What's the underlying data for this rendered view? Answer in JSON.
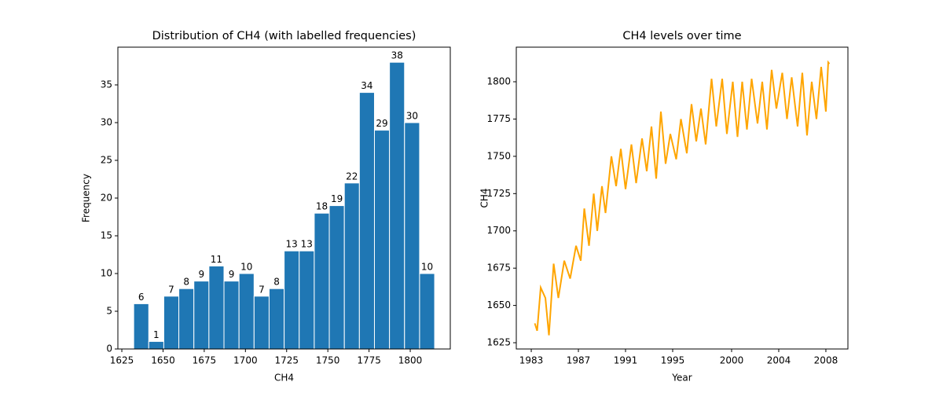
{
  "chart_data": [
    {
      "type": "histogram",
      "title": "Distribution of CH4 (with labelled frequencies)",
      "x_label": "CH4",
      "y_label": "Frequency",
      "bins": [
        1632.2,
        1641.33,
        1650.46,
        1659.59,
        1668.72,
        1677.85,
        1686.98,
        1696.11,
        1705.24,
        1714.37,
        1723.5,
        1732.63,
        1741.76,
        1750.89,
        1760.02,
        1769.15,
        1778.28,
        1787.41,
        1796.54,
        1805.67,
        1814.8
      ],
      "values": [
        6,
        1,
        7,
        8,
        9,
        11,
        9,
        10,
        7,
        8,
        13,
        13,
        18,
        19,
        22,
        34,
        29,
        38,
        30,
        10
      ],
      "color": "#1f77b4",
      "xlim": [
        1622.6,
        1824.3
      ],
      "ylim": [
        0,
        40
      ],
      "xticks": [
        1625,
        1650,
        1675,
        1700,
        1725,
        1750,
        1775,
        1800
      ],
      "yticks": [
        0,
        5,
        10,
        15,
        20,
        25,
        30,
        35
      ],
      "grid": false
    },
    {
      "type": "line",
      "title": "CH4 levels over time",
      "x_label": "Year",
      "y_label": "CH4",
      "x": [
        1983.3,
        1983.5,
        1983.8,
        1984.2,
        1984.5,
        1984.9,
        1985.3,
        1985.8,
        1986.3,
        1986.8,
        1987.2,
        1987.5,
        1987.9,
        1988.3,
        1988.6,
        1989.0,
        1989.3,
        1989.8,
        1990.2,
        1990.6,
        1991.0,
        1991.5,
        1991.9,
        1992.4,
        1992.8,
        1993.2,
        1993.6,
        1994.0,
        1994.4,
        1994.8,
        1995.3,
        1995.7,
        1996.2,
        1996.6,
        1997.0,
        1997.4,
        1997.8,
        1998.3,
        1998.7,
        1999.2,
        1999.6,
        2000.1,
        2000.5,
        2000.9,
        2001.3,
        2001.7,
        2002.2,
        2002.6,
        2003.0,
        2003.4,
        2003.8,
        2004.3,
        2004.7,
        2005.1,
        2005.6,
        2006.0,
        2006.4,
        2006.8,
        2007.2,
        2007.6,
        2008.0,
        2008.2,
        2008.3
      ],
      "series": [
        {
          "name": "CH4",
          "color": "#ffa500",
          "values": [
            1638,
            1633,
            1662,
            1655,
            1630,
            1678,
            1655,
            1680,
            1668,
            1690,
            1680,
            1715,
            1690,
            1725,
            1700,
            1730,
            1712,
            1750,
            1730,
            1755,
            1728,
            1758,
            1732,
            1762,
            1740,
            1770,
            1735,
            1780,
            1745,
            1765,
            1748,
            1775,
            1752,
            1785,
            1760,
            1782,
            1758,
            1802,
            1770,
            1802,
            1765,
            1800,
            1763,
            1800,
            1768,
            1802,
            1772,
            1800,
            1768,
            1808,
            1782,
            1806,
            1775,
            1803,
            1770,
            1806,
            1764,
            1800,
            1775,
            1810,
            1780,
            1813,
            1812
          ]
        }
      ],
      "xlim": [
        1981.73,
        2009.87
      ],
      "ylim": [
        1620.8,
        1823.2
      ],
      "xticks": [
        1983,
        1987,
        1991,
        1995,
        2000,
        2004,
        2008
      ],
      "yticks": [
        1625,
        1650,
        1675,
        1700,
        1725,
        1750,
        1775,
        1800
      ],
      "grid": false
    }
  ]
}
